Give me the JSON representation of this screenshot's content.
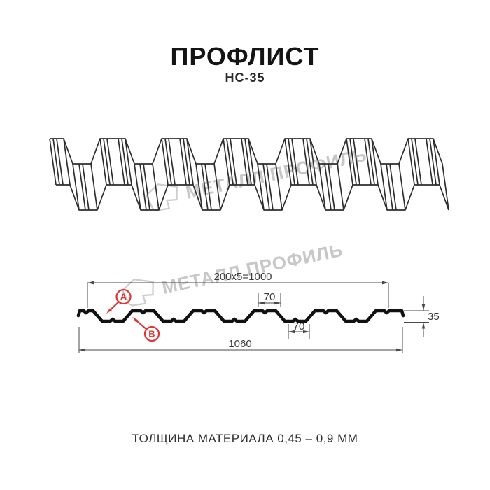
{
  "title": "ПРОФЛИСТ",
  "subtitle": "НС-35",
  "watermark": {
    "text": "МЕТАЛЛ ПРОФИЛЬ"
  },
  "cross_section": {
    "dim_coverage_width": "200x5=1000",
    "dim_crest_width": "70",
    "dim_valley_width": "70",
    "dim_profile_height": "35",
    "dim_total_width": "1060",
    "marker_a": "A",
    "marker_b": "B"
  },
  "footer": "ТОЛЩИНА МАТЕРИАЛА 0,45 – 0,9 ММ",
  "colors": {
    "accent_red": "#e03535",
    "line": "#1a1a1a",
    "dimension": "#4a4a4a",
    "watermark": "#c7c7c7"
  }
}
